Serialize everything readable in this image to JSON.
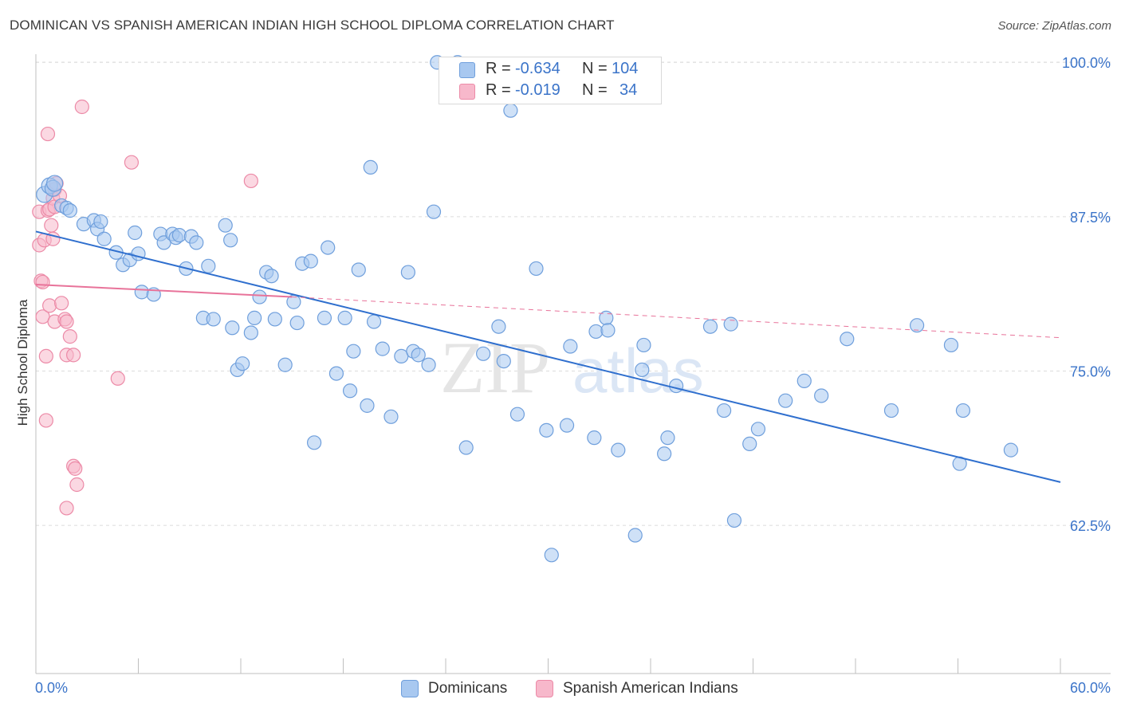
{
  "header": {
    "title": "DOMINICAN VS SPANISH AMERICAN INDIAN HIGH SCHOOL DIPLOMA CORRELATION CHART",
    "source": "Source: ZipAtlas.com"
  },
  "watermark": {
    "zip": "ZIP",
    "atlas": "atlas"
  },
  "legend": {
    "rows": [
      {
        "r_label": "R =",
        "r_value": "-0.634",
        "n_label": "N =",
        "n_value": "104",
        "color": "#a8c8f0"
      },
      {
        "r_label": "R =",
        "r_value": "-0.019",
        "n_label": "N =",
        "n_value": "34",
        "color": "#f7b8cb"
      }
    ]
  },
  "chart_data": {
    "type": "scatter",
    "title": "DOMINICAN VS SPANISH AMERICAN INDIAN HIGH SCHOOL DIPLOMA CORRELATION CHART",
    "xlabel": "",
    "ylabel": "High School Diploma",
    "xlim": [
      0,
      60
    ],
    "ylim": [
      50.5,
      101.5
    ],
    "x_tick_labels": [
      "0.0%",
      "60.0%"
    ],
    "y_ticks": [
      62.5,
      75.0,
      87.5,
      100.0
    ],
    "y_tick_labels": [
      "62.5%",
      "75.0%",
      "87.5%",
      "100.0%"
    ],
    "grid": true,
    "legend_position": "bottom",
    "series": [
      {
        "name": "Dominicans",
        "color": "#a8c8f0",
        "stroke": "#6f9fdc",
        "points": [
          [
            0.5,
            89.3
          ],
          [
            0.8,
            90.0
          ],
          [
            1.0,
            89.8
          ],
          [
            1.1,
            90.2
          ],
          [
            1.5,
            88.4
          ],
          [
            1.8,
            88.2
          ],
          [
            2.0,
            88.0
          ],
          [
            2.8,
            86.9
          ],
          [
            3.4,
            87.2
          ],
          [
            3.6,
            86.5
          ],
          [
            3.8,
            87.1
          ],
          [
            4.0,
            85.7
          ],
          [
            4.7,
            84.6
          ],
          [
            5.1,
            83.6
          ],
          [
            5.5,
            84.0
          ],
          [
            5.8,
            86.2
          ],
          [
            6.0,
            84.5
          ],
          [
            6.2,
            81.4
          ],
          [
            6.9,
            81.2
          ],
          [
            7.3,
            86.1
          ],
          [
            7.5,
            85.4
          ],
          [
            8.0,
            86.1
          ],
          [
            8.2,
            85.8
          ],
          [
            8.4,
            86.0
          ],
          [
            8.8,
            83.3
          ],
          [
            9.1,
            85.9
          ],
          [
            9.4,
            85.4
          ],
          [
            9.8,
            79.3
          ],
          [
            10.1,
            83.5
          ],
          [
            10.4,
            79.2
          ],
          [
            11.1,
            86.8
          ],
          [
            11.4,
            85.6
          ],
          [
            11.5,
            78.5
          ],
          [
            11.8,
            75.1
          ],
          [
            12.1,
            75.6
          ],
          [
            12.6,
            78.1
          ],
          [
            12.8,
            79.3
          ],
          [
            13.1,
            81.0
          ],
          [
            13.5,
            83.0
          ],
          [
            13.8,
            82.7
          ],
          [
            14.0,
            79.2
          ],
          [
            14.6,
            75.5
          ],
          [
            15.1,
            80.6
          ],
          [
            15.3,
            78.9
          ],
          [
            15.6,
            83.7
          ],
          [
            16.1,
            83.9
          ],
          [
            16.3,
            69.2
          ],
          [
            16.9,
            79.3
          ],
          [
            17.1,
            85.0
          ],
          [
            17.6,
            74.8
          ],
          [
            18.1,
            79.3
          ],
          [
            18.4,
            73.4
          ],
          [
            18.6,
            76.6
          ],
          [
            18.9,
            83.2
          ],
          [
            19.4,
            72.2
          ],
          [
            19.6,
            91.5
          ],
          [
            19.8,
            79.0
          ],
          [
            20.3,
            76.8
          ],
          [
            20.8,
            71.3
          ],
          [
            21.4,
            76.2
          ],
          [
            21.8,
            83.0
          ],
          [
            22.1,
            76.6
          ],
          [
            22.4,
            76.3
          ],
          [
            23.0,
            75.5
          ],
          [
            23.3,
            87.9
          ],
          [
            23.5,
            100.0
          ],
          [
            24.7,
            100.0
          ],
          [
            25.2,
            68.8
          ],
          [
            26.2,
            76.4
          ],
          [
            27.1,
            78.6
          ],
          [
            27.4,
            75.8
          ],
          [
            27.8,
            96.1
          ],
          [
            28.2,
            71.5
          ],
          [
            29.3,
            83.3
          ],
          [
            29.9,
            70.2
          ],
          [
            30.2,
            60.1
          ],
          [
            31.1,
            70.6
          ],
          [
            31.3,
            77.0
          ],
          [
            32.7,
            69.6
          ],
          [
            32.8,
            78.2
          ],
          [
            33.4,
            79.3
          ],
          [
            33.5,
            78.3
          ],
          [
            34.1,
            68.6
          ],
          [
            35.1,
            61.7
          ],
          [
            35.5,
            75.1
          ],
          [
            35.6,
            77.1
          ],
          [
            36.8,
            68.3
          ],
          [
            37.0,
            69.6
          ],
          [
            37.5,
            73.8
          ],
          [
            39.5,
            78.6
          ],
          [
            40.3,
            71.8
          ],
          [
            40.7,
            78.8
          ],
          [
            40.9,
            62.9
          ],
          [
            41.8,
            69.1
          ],
          [
            42.3,
            70.3
          ],
          [
            43.9,
            72.6
          ],
          [
            45.0,
            74.2
          ],
          [
            46.0,
            73.0
          ],
          [
            47.5,
            77.6
          ],
          [
            50.1,
            71.8
          ],
          [
            51.6,
            78.7
          ],
          [
            53.6,
            77.1
          ],
          [
            54.1,
            67.5
          ],
          [
            54.3,
            71.8
          ],
          [
            57.1,
            68.6
          ]
        ]
      },
      {
        "name": "Spanish American Indians",
        "color": "#f7b8cb",
        "stroke": "#ec8aa7",
        "points": [
          [
            0.2,
            87.9
          ],
          [
            0.2,
            85.2
          ],
          [
            0.3,
            82.3
          ],
          [
            0.4,
            82.2
          ],
          [
            0.4,
            79.4
          ],
          [
            0.5,
            85.6
          ],
          [
            0.6,
            76.2
          ],
          [
            0.6,
            71.0
          ],
          [
            0.7,
            88.0
          ],
          [
            0.7,
            94.2
          ],
          [
            0.8,
            88.1
          ],
          [
            0.8,
            80.3
          ],
          [
            0.9,
            86.8
          ],
          [
            1.0,
            85.7
          ],
          [
            1.0,
            89.0
          ],
          [
            1.1,
            89.7
          ],
          [
            1.1,
            88.3
          ],
          [
            1.1,
            79.0
          ],
          [
            1.2,
            90.2
          ],
          [
            1.4,
            89.2
          ],
          [
            1.5,
            80.5
          ],
          [
            1.7,
            79.2
          ],
          [
            1.8,
            79.0
          ],
          [
            1.8,
            76.3
          ],
          [
            1.8,
            63.9
          ],
          [
            2.0,
            77.8
          ],
          [
            2.2,
            76.3
          ],
          [
            2.2,
            67.3
          ],
          [
            2.3,
            67.1
          ],
          [
            2.4,
            65.8
          ],
          [
            2.7,
            96.4
          ],
          [
            4.8,
            74.4
          ],
          [
            5.6,
            91.9
          ],
          [
            12.6,
            90.4
          ]
        ]
      }
    ],
    "trend_lines": [
      {
        "series": "Dominicans",
        "color": "#2f6fce",
        "x": [
          0,
          60
        ],
        "y": [
          86.3,
          66.0
        ]
      },
      {
        "series": "Spanish American Indians",
        "color": "#e8739a",
        "x": [
          0,
          15
        ],
        "y": [
          82.0,
          81.0
        ]
      },
      {
        "series": "Spanish American Indians",
        "color": "#e8739a",
        "dashed": true,
        "x": [
          15,
          60
        ],
        "y": [
          81.0,
          77.7
        ]
      }
    ]
  }
}
